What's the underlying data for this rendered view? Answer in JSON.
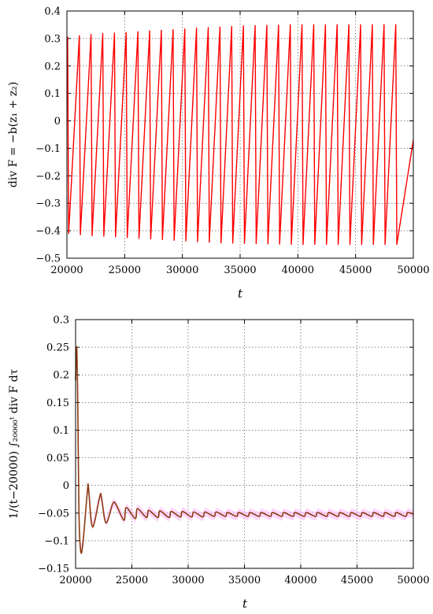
{
  "chart_data": [
    {
      "type": "line",
      "ylabel": "div F = −b(z₁ + z₂)",
      "xlabel": "t",
      "xlim": [
        20000,
        50000
      ],
      "ylim": [
        -0.5,
        0.4
      ],
      "x_ticks": [
        "20000",
        "25000",
        "30000",
        "35000",
        "40000",
        "45000",
        "50000"
      ],
      "y_ticks": [
        "−0.5",
        "−0.4",
        "−0.3",
        "−0.2",
        "−0.1",
        "0",
        "0.1",
        "0.2",
        "0.3",
        "0.4"
      ],
      "grid": true,
      "series": [
        {
          "color": "#ff0000",
          "description": "sawtooth oscillation",
          "period": 1015,
          "start": 20000,
          "end": 50000,
          "end_value": -0.07,
          "peak_values": [
            0.305,
            0.31,
            0.315,
            0.318,
            0.32,
            0.322,
            0.325,
            0.328,
            0.33,
            0.332,
            0.335,
            0.338,
            0.34,
            0.342,
            0.344,
            0.346,
            0.347,
            0.348,
            0.349,
            0.35,
            0.35,
            0.35,
            0.35,
            0.35,
            0.35,
            0.35,
            0.35,
            0.35,
            0.35
          ],
          "trough_values": [
            -0.41,
            -0.415,
            -0.418,
            -0.42,
            -0.422,
            -0.425,
            -0.428,
            -0.43,
            -0.432,
            -0.435,
            -0.437,
            -0.44,
            -0.442,
            -0.444,
            -0.445,
            -0.446,
            -0.447,
            -0.448,
            -0.449,
            -0.45,
            -0.45,
            -0.45,
            -0.45,
            -0.45,
            -0.45,
            -0.45,
            -0.45,
            -0.45,
            -0.45
          ]
        }
      ]
    },
    {
      "type": "line",
      "ylabel": "1/(t−20000) ∫₂₀₀₀₀ᵗ div F dτ",
      "xlabel": "t",
      "xlim": [
        20000,
        50000
      ],
      "ylim": [
        -0.15,
        0.3
      ],
      "x_ticks": [
        "20000",
        "25000",
        "30000",
        "35000",
        "40000",
        "45000",
        "50000"
      ],
      "y_ticks": [
        "−0.15",
        "−0.1",
        "−0.05",
        "0",
        "0.05",
        "0.1",
        "0.15",
        "0.2",
        "0.25",
        "0.3"
      ],
      "grid": true,
      "series": [
        {
          "color": "#8b3a0f",
          "band_color": "#ffb6ff",
          "description": "running average, damped oscillation",
          "asymptote": -0.052,
          "x": [
            20000,
            20100,
            20200,
            20300,
            20450,
            20650,
            21050,
            21150,
            21500,
            22150,
            22300,
            22700,
            23300,
            23600,
            24300,
            24500,
            25300,
            25500,
            26300,
            26500,
            27300,
            27500,
            28300,
            28500,
            29300,
            29500,
            30300,
            30500,
            31300,
            31500,
            32300,
            32500,
            33300,
            33500,
            34300,
            34500,
            35300,
            35500,
            36300,
            36500,
            37300,
            37500,
            38300,
            38500,
            39300,
            39500,
            40300,
            40500,
            41300,
            41500,
            42300,
            42500,
            43300,
            43500,
            44300,
            44500,
            45300,
            45500,
            46300,
            46500,
            47300,
            47500,
            48300,
            48500,
            49300,
            49500,
            50000
          ],
          "y": [
            0.19,
            0.25,
            0.14,
            -0.05,
            -0.118,
            -0.105,
            -0.01,
            -0.005,
            -0.075,
            -0.02,
            -0.022,
            -0.068,
            -0.033,
            -0.035,
            -0.063,
            -0.04,
            -0.06,
            -0.042,
            -0.058,
            -0.045,
            -0.058,
            -0.046,
            -0.058,
            -0.047,
            -0.057,
            -0.047,
            -0.057,
            -0.048,
            -0.057,
            -0.048,
            -0.056,
            -0.048,
            -0.056,
            -0.049,
            -0.056,
            -0.049,
            -0.056,
            -0.049,
            -0.056,
            -0.049,
            -0.056,
            -0.049,
            -0.056,
            -0.049,
            -0.056,
            -0.049,
            -0.056,
            -0.049,
            -0.056,
            -0.049,
            -0.056,
            -0.049,
            -0.056,
            -0.049,
            -0.056,
            -0.049,
            -0.056,
            -0.049,
            -0.056,
            -0.049,
            -0.056,
            -0.049,
            -0.056,
            -0.049,
            -0.056,
            -0.049,
            -0.052
          ]
        }
      ]
    }
  ]
}
